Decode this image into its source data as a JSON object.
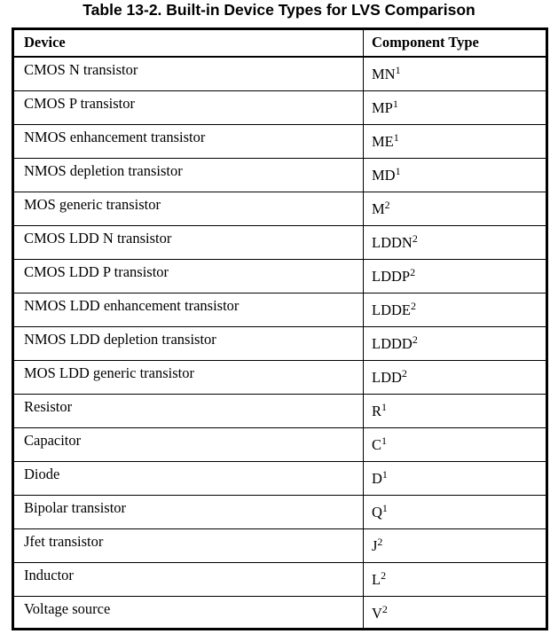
{
  "title": "Table 13-2. Built-in Device Types for LVS Comparison",
  "headers": [
    "Device",
    "Component Type"
  ],
  "rows": [
    {
      "device": "CMOS N transistor",
      "type": "MN",
      "note": "1"
    },
    {
      "device": "CMOS P transistor",
      "type": "MP",
      "note": "1"
    },
    {
      "device": "NMOS enhancement transistor",
      "type": "ME",
      "note": "1"
    },
    {
      "device": "NMOS depletion transistor",
      "type": "MD",
      "note": "1"
    },
    {
      "device": "MOS generic transistor",
      "type": "M",
      "note": "2"
    },
    {
      "device": "CMOS LDD N transistor",
      "type": "LDDN",
      "note": "2"
    },
    {
      "device": "CMOS LDD P transistor",
      "type": "LDDP",
      "note": "2"
    },
    {
      "device": "NMOS LDD enhancement transistor",
      "type": "LDDE",
      "note": "2"
    },
    {
      "device": "NMOS LDD depletion transistor",
      "type": "LDDD",
      "note": "2"
    },
    {
      "device": "MOS LDD generic transistor",
      "type": "LDD",
      "note": "2"
    },
    {
      "device": "Resistor",
      "type": "R",
      "note": "1"
    },
    {
      "device": "Capacitor",
      "type": "C",
      "note": "1"
    },
    {
      "device": "Diode",
      "type": "D",
      "note": "1"
    },
    {
      "device": "Bipolar transistor",
      "type": "Q",
      "note": "1"
    },
    {
      "device": "Jfet transistor",
      "type": "J",
      "note": "2"
    },
    {
      "device": "Inductor",
      "type": "L",
      "note": "2"
    },
    {
      "device": "Voltage source",
      "type": "V",
      "note": "2"
    }
  ]
}
